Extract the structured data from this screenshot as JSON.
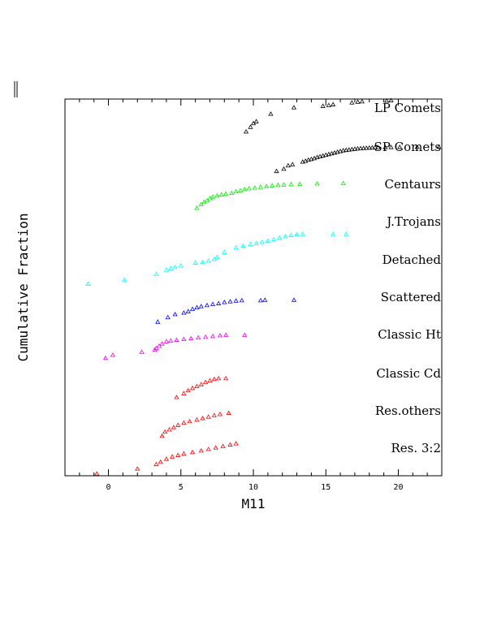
{
  "chart_data": {
    "type": "scatter",
    "xlabel": "M11",
    "ylabel": "Cumulative Fraction",
    "xlim": [
      -3,
      23
    ],
    "x_ticks": [
      0,
      5,
      10,
      15,
      20
    ],
    "y_ticks_labeled": false,
    "marker": "open-triangle",
    "grid": false,
    "legend": "none",
    "series_labels_placement": "right, inside plot",
    "note": "Each population is a cumulative distribution offset vertically (stacked curves).",
    "series": [
      {
        "name": "LP Comets",
        "color": "#000000",
        "points": [
          [
            9.5,
            0.913
          ],
          [
            9.8,
            0.925
          ],
          [
            10,
            0.935
          ],
          [
            10.2,
            0.94
          ],
          [
            11.2,
            0.96
          ],
          [
            12.8,
            0.977
          ],
          [
            14.8,
            0.981
          ],
          [
            15.2,
            0.983
          ],
          [
            15.5,
            0.985
          ],
          [
            16.8,
            0.99
          ],
          [
            17.2,
            0.992
          ],
          [
            17.5,
            0.993
          ],
          [
            19.2,
            0.995
          ],
          [
            19.5,
            0.996
          ]
        ]
      },
      {
        "name": "SP Comets",
        "color": "#000000",
        "points": [
          [
            11.6,
            0.808
          ],
          [
            12.1,
            0.814
          ],
          [
            12.4,
            0.823
          ],
          [
            12.7,
            0.826
          ],
          [
            13.4,
            0.833
          ],
          [
            13.6,
            0.835
          ],
          [
            13.8,
            0.838
          ],
          [
            14,
            0.84
          ],
          [
            14.2,
            0.842
          ],
          [
            14.4,
            0.845
          ],
          [
            14.6,
            0.847
          ],
          [
            14.8,
            0.849
          ],
          [
            15,
            0.851
          ],
          [
            15.2,
            0.853
          ],
          [
            15.4,
            0.855
          ],
          [
            15.6,
            0.857
          ],
          [
            15.8,
            0.859
          ],
          [
            16,
            0.861
          ],
          [
            16.2,
            0.863
          ],
          [
            16.4,
            0.864
          ],
          [
            16.6,
            0.865
          ],
          [
            16.8,
            0.866
          ],
          [
            17,
            0.867
          ],
          [
            17.2,
            0.868
          ],
          [
            17.4,
            0.8685
          ],
          [
            17.6,
            0.869
          ],
          [
            17.8,
            0.8695
          ],
          [
            18,
            0.87
          ],
          [
            18.2,
            0.8705
          ],
          [
            18.4,
            0.871
          ],
          [
            18.6,
            0.8712
          ],
          [
            19.1,
            0.8714
          ],
          [
            19.5,
            0.8716
          ],
          [
            20.1,
            0.8718
          ],
          [
            21.3,
            0.872
          ],
          [
            22.8,
            0.8722
          ]
        ]
      },
      {
        "name": "Centaurs",
        "color": "#00ee00",
        "points": [
          [
            6.1,
            0.71
          ],
          [
            6.4,
            0.72
          ],
          [
            6.6,
            0.726
          ],
          [
            6.8,
            0.73
          ],
          [
            7,
            0.736
          ],
          [
            7.2,
            0.74
          ],
          [
            7.5,
            0.743
          ],
          [
            7.8,
            0.746
          ],
          [
            8.1,
            0.748
          ],
          [
            8.5,
            0.75
          ],
          [
            8.8,
            0.754
          ],
          [
            9.1,
            0.757
          ],
          [
            9.4,
            0.76
          ],
          [
            9.7,
            0.762
          ],
          [
            10.1,
            0.764
          ],
          [
            10.5,
            0.766
          ],
          [
            10.9,
            0.768
          ],
          [
            11.3,
            0.77
          ],
          [
            11.7,
            0.771
          ],
          [
            12.1,
            0.772
          ],
          [
            12.6,
            0.773
          ],
          [
            13.2,
            0.774
          ],
          [
            14.4,
            0.775
          ],
          [
            16.2,
            0.776
          ]
        ]
      },
      {
        "name": "J.Trojans",
        "color": "#00ffff",
        "points": [
          [
            -1.4,
            0.509
          ],
          [
            1.1,
            0.52
          ],
          [
            3.3,
            0.535
          ],
          [
            4,
            0.546
          ],
          [
            4.3,
            0.55
          ],
          [
            4.6,
            0.553
          ],
          [
            5,
            0.557
          ],
          [
            6,
            0.565
          ],
          [
            6.5,
            0.567
          ],
          [
            6.9,
            0.57
          ],
          [
            7.3,
            0.574
          ],
          [
            7.5,
            0.58
          ],
          [
            8,
            0.593
          ],
          [
            8.8,
            0.605
          ],
          [
            9.3,
            0.61
          ],
          [
            9.8,
            0.614
          ],
          [
            10.2,
            0.617
          ],
          [
            10.6,
            0.62
          ],
          [
            11,
            0.623
          ],
          [
            11.4,
            0.627
          ],
          [
            11.8,
            0.631
          ],
          [
            12.2,
            0.635
          ],
          [
            12.6,
            0.638
          ],
          [
            13,
            0.64
          ],
          [
            13.4,
            0.641
          ],
          [
            15.5,
            0.641
          ],
          [
            16.4,
            0.641
          ]
        ]
      },
      {
        "name": "Detached",
        "color": "#0000ff",
        "points": [
          [
            3.4,
            0.408
          ],
          [
            4.1,
            0.42
          ],
          [
            4.6,
            0.428
          ],
          [
            5.2,
            0.432
          ],
          [
            5.5,
            0.436
          ],
          [
            5.8,
            0.442
          ],
          [
            6.1,
            0.446
          ],
          [
            6.4,
            0.449
          ],
          [
            6.8,
            0.452
          ],
          [
            7.2,
            0.455
          ],
          [
            7.6,
            0.457
          ],
          [
            8,
            0.46
          ],
          [
            8.4,
            0.462
          ],
          [
            8.8,
            0.464
          ],
          [
            9.2,
            0.465
          ],
          [
            10.5,
            0.465
          ],
          [
            10.8,
            0.466
          ],
          [
            12.8,
            0.466
          ]
        ]
      },
      {
        "name": "Scattered",
        "color": "#ee00ee",
        "points": [
          [
            -0.2,
            0.312
          ],
          [
            0.3,
            0.32
          ],
          [
            2.3,
            0.328
          ],
          [
            3.2,
            0.334
          ],
          [
            3.3,
            0.338
          ],
          [
            3.5,
            0.344
          ],
          [
            3.7,
            0.35
          ],
          [
            4,
            0.356
          ],
          [
            4.3,
            0.358
          ],
          [
            4.7,
            0.36
          ],
          [
            5.2,
            0.362
          ],
          [
            5.7,
            0.364
          ],
          [
            6.2,
            0.366
          ],
          [
            6.7,
            0.368
          ],
          [
            7.2,
            0.37
          ],
          [
            7.7,
            0.372
          ],
          [
            8.1,
            0.373
          ],
          [
            9.4,
            0.373
          ]
        ]
      },
      {
        "name": "Classic Ht",
        "color": "#ff0000",
        "points": [
          [
            4.7,
            0.208
          ],
          [
            5.2,
            0.218
          ],
          [
            5.5,
            0.226
          ],
          [
            5.8,
            0.232
          ],
          [
            6.1,
            0.237
          ],
          [
            6.4,
            0.242
          ],
          [
            6.7,
            0.248
          ],
          [
            7,
            0.252
          ],
          [
            7.3,
            0.256
          ],
          [
            7.6,
            0.258
          ],
          [
            8.1,
            0.258
          ]
        ]
      },
      {
        "name": "Classic Cd",
        "color": "#ff0000",
        "points": [
          [
            3.7,
            0.105
          ],
          [
            3.9,
            0.116
          ],
          [
            4.2,
            0.122
          ],
          [
            4.5,
            0.128
          ],
          [
            4.8,
            0.134
          ],
          [
            5.2,
            0.14
          ],
          [
            5.6,
            0.144
          ],
          [
            6.1,
            0.148
          ],
          [
            6.5,
            0.152
          ],
          [
            6.9,
            0.156
          ],
          [
            7.3,
            0.16
          ],
          [
            7.7,
            0.163
          ],
          [
            8.3,
            0.166
          ]
        ]
      },
      {
        "name": "Res.others",
        "color": "#ff0000",
        "points": [
          [
            3.3,
            0.03
          ],
          [
            3.6,
            0.036
          ],
          [
            4,
            0.044
          ],
          [
            4.4,
            0.05
          ],
          [
            4.8,
            0.054
          ],
          [
            5.2,
            0.058
          ],
          [
            5.8,
            0.062
          ],
          [
            6.4,
            0.066
          ],
          [
            6.9,
            0.07
          ],
          [
            7.4,
            0.074
          ],
          [
            7.9,
            0.078
          ],
          [
            8.4,
            0.082
          ],
          [
            8.8,
            0.085
          ]
        ]
      },
      {
        "name": "Res. 3:2",
        "color": "#ff0000",
        "points": [
          [
            -0.8,
            0.005
          ],
          [
            2,
            0.018
          ]
        ]
      }
    ]
  }
}
